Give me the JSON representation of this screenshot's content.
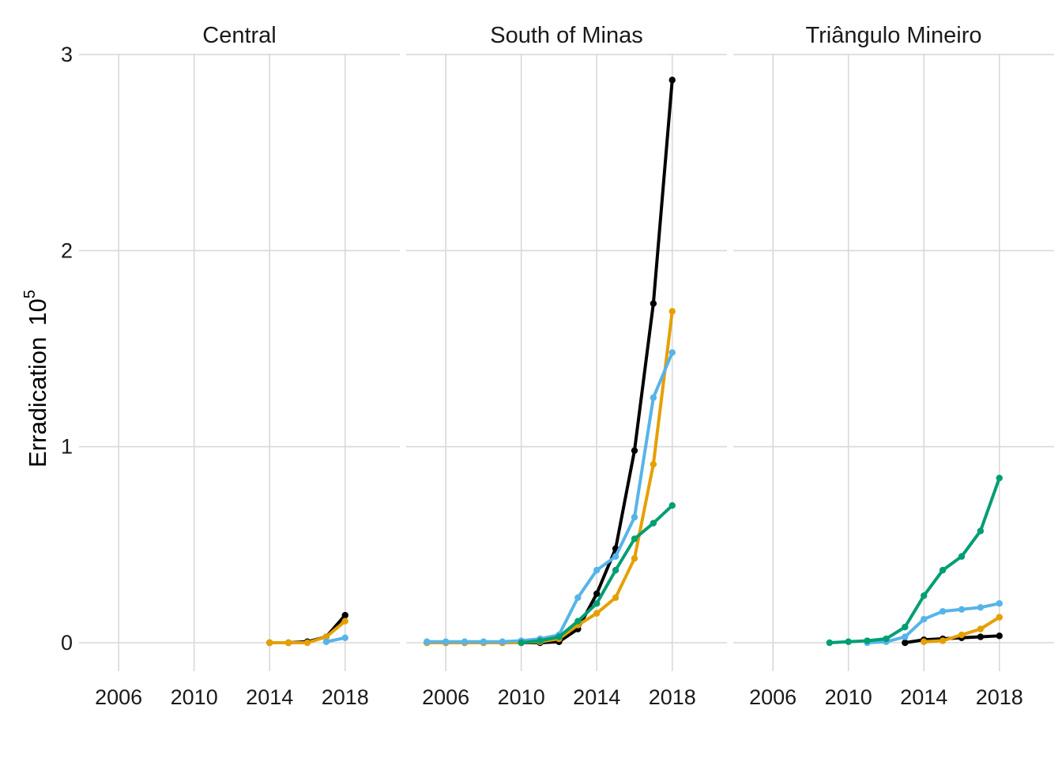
{
  "chart_data": {
    "type": "line",
    "ylabel": "Erradication",
    "ylabel_power": "10",
    "ylabel_exponent": "5",
    "xlim": [
      2003.9,
      2020.9
    ],
    "ylim": [
      -0.17,
      3.03
    ],
    "x_ticks": [
      2006,
      2010,
      2014,
      2018
    ],
    "y_ticks": [
      0,
      1,
      2,
      3
    ],
    "grid": true,
    "legend": "none",
    "colors": {
      "black": "#000000",
      "orange": "#E69F00",
      "skyblue": "#56B4E9",
      "green": "#009E73"
    },
    "panels": [
      {
        "title": "Central",
        "series": [
          {
            "color": "#000000",
            "x": [
              2014,
              2015,
              2016,
              2017,
              2018
            ],
            "y": [
              0,
              0,
              0.005,
              0.03,
              0.14
            ]
          },
          {
            "color": "#E69F00",
            "x": [
              2014,
              2015,
              2016,
              2017,
              2018
            ],
            "y": [
              0,
              0,
              0,
              0.03,
              0.11
            ]
          },
          {
            "color": "#56B4E9",
            "x": [
              2017,
              2018
            ],
            "y": [
              0.005,
              0.025
            ]
          }
        ]
      },
      {
        "title": "South of Minas",
        "series": [
          {
            "color": "#000000",
            "x": [
              2005,
              2006,
              2007,
              2008,
              2009,
              2010,
              2011,
              2012,
              2013,
              2014,
              2015,
              2016,
              2017,
              2018
            ],
            "y": [
              0,
              0,
              0,
              0,
              0,
              0,
              0,
              0.005,
              0.07,
              0.25,
              0.48,
              0.98,
              1.73,
              2.87
            ]
          },
          {
            "color": "#E69F00",
            "x": [
              2005,
              2006,
              2007,
              2008,
              2009,
              2010,
              2011,
              2012,
              2013,
              2014,
              2015,
              2016,
              2017,
              2018
            ],
            "y": [
              0,
              0,
              0,
              0,
              0,
              0,
              0.005,
              0.02,
              0.09,
              0.15,
              0.23,
              0.43,
              0.91,
              1.69
            ]
          },
          {
            "color": "#56B4E9",
            "x": [
              2005,
              2006,
              2007,
              2008,
              2009,
              2010,
              2011,
              2012,
              2013,
              2014,
              2015,
              2016,
              2017,
              2018
            ],
            "y": [
              0.005,
              0.005,
              0.005,
              0.005,
              0.005,
              0.01,
              0.02,
              0.04,
              0.23,
              0.37,
              0.44,
              0.64,
              1.25,
              1.48
            ]
          },
          {
            "color": "#009E73",
            "x": [
              2010,
              2011,
              2012,
              2013,
              2014,
              2015,
              2016,
              2017,
              2018
            ],
            "y": [
              0,
              0.01,
              0.03,
              0.11,
              0.2,
              0.37,
              0.53,
              0.61,
              0.7
            ]
          }
        ]
      },
      {
        "title": "Triângulo Mineiro",
        "series": [
          {
            "color": "#000000",
            "x": [
              2013,
              2014,
              2015,
              2016,
              2017,
              2018
            ],
            "y": [
              0,
              0.015,
              0.02,
              0.025,
              0.03,
              0.035
            ]
          },
          {
            "color": "#E69F00",
            "x": [
              2014,
              2015,
              2016,
              2017,
              2018
            ],
            "y": [
              0.005,
              0.01,
              0.04,
              0.07,
              0.13
            ]
          },
          {
            "color": "#56B4E9",
            "x": [
              2011,
              2012,
              2013,
              2014,
              2015,
              2016,
              2017,
              2018
            ],
            "y": [
              0,
              0.005,
              0.03,
              0.12,
              0.16,
              0.17,
              0.18,
              0.2
            ]
          },
          {
            "color": "#009E73",
            "x": [
              2009,
              2010,
              2011,
              2012,
              2013,
              2014,
              2015,
              2016,
              2017,
              2018
            ],
            "y": [
              0,
              0.005,
              0.01,
              0.02,
              0.08,
              0.24,
              0.37,
              0.44,
              0.57,
              0.84
            ]
          }
        ]
      }
    ]
  }
}
